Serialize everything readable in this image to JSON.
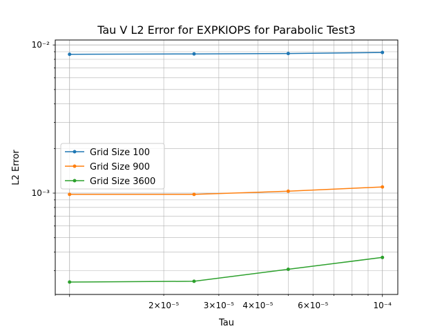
{
  "chart_data": {
    "type": "line",
    "title": "Tau V L2 Error for EXPKIOPS for Parabolic Test3",
    "xlabel": "Tau",
    "ylabel": "L2 Error",
    "xscale": "log",
    "yscale": "log",
    "xlim": [
      9e-06,
      0.000112
    ],
    "ylim": [
      0.000207,
      0.0108
    ],
    "grid": true,
    "grid_minor": true,
    "legend_position": "center-left",
    "x_ticks_major": [
      {
        "value": 0.0001,
        "label": "10⁻⁴"
      }
    ],
    "x_ticks_minor": [
      {
        "value": 2e-05,
        "label": "2×10⁻⁵"
      },
      {
        "value": 3e-05,
        "label": "3×10⁻⁵"
      },
      {
        "value": 4e-05,
        "label": "4×10⁻⁵"
      },
      {
        "value": 6e-05,
        "label": "6×10⁻⁵"
      }
    ],
    "y_ticks_major": [
      {
        "value": 0.001,
        "label": "10⁻³"
      },
      {
        "value": 0.01,
        "label": "10⁻²"
      }
    ],
    "x": [
      1e-05,
      2.5e-05,
      5e-05,
      0.0001
    ],
    "series": [
      {
        "name": "Grid Size 100",
        "color": "#1f77b4",
        "values": [
          0.00865,
          0.0087,
          0.00875,
          0.0089
        ]
      },
      {
        "name": "Grid Size 900",
        "color": "#ff7f0e",
        "values": [
          0.00098,
          0.00098,
          0.00103,
          0.0011
        ]
      },
      {
        "name": "Grid Size 3600",
        "color": "#2ca02c",
        "values": [
          0.000251,
          0.000254,
          0.000306,
          0.000368
        ]
      }
    ]
  }
}
